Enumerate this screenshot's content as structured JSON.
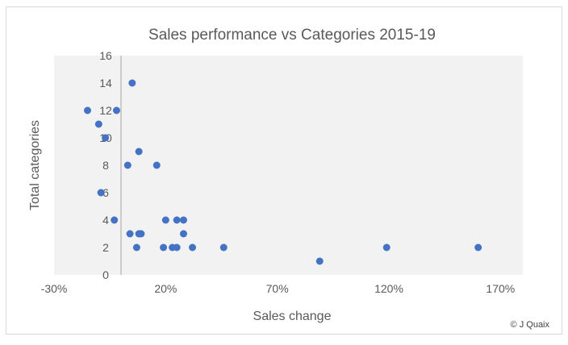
{
  "chart_data": {
    "type": "scatter",
    "title": "Sales performance vs Categories 2015-19",
    "xlabel": "Sales change",
    "ylabel": "Total categories",
    "xlim": [
      -0.3,
      1.8
    ],
    "ylim": [
      0,
      16
    ],
    "x_ticks": [
      -0.3,
      0.2,
      0.7,
      1.2,
      1.7
    ],
    "x_tick_labels": [
      "-30%",
      "20%",
      "70%",
      "120%",
      "170%"
    ],
    "y_ticks": [
      0,
      2,
      4,
      6,
      8,
      10,
      12,
      14,
      16
    ],
    "y_tick_labels": [
      "0",
      "2",
      "4",
      "6",
      "8",
      "10",
      "12",
      "14",
      "16"
    ],
    "grid": false,
    "colors": {
      "marker": "#4472c4",
      "plot_background": "#f2f2f2",
      "zero_line": "#a6a6a6"
    },
    "points": [
      {
        "x": -0.15,
        "y": 12
      },
      {
        "x": -0.02,
        "y": 12
      },
      {
        "x": -0.1,
        "y": 11
      },
      {
        "x": -0.07,
        "y": 10
      },
      {
        "x": 0.05,
        "y": 14
      },
      {
        "x": 0.08,
        "y": 9
      },
      {
        "x": 0.03,
        "y": 8
      },
      {
        "x": 0.16,
        "y": 8
      },
      {
        "x": -0.09,
        "y": 6
      },
      {
        "x": -0.03,
        "y": 4
      },
      {
        "x": 0.2,
        "y": 4
      },
      {
        "x": 0.25,
        "y": 4
      },
      {
        "x": 0.28,
        "y": 4
      },
      {
        "x": 0.04,
        "y": 3
      },
      {
        "x": 0.08,
        "y": 3
      },
      {
        "x": 0.09,
        "y": 3
      },
      {
        "x": 0.28,
        "y": 3
      },
      {
        "x": 0.07,
        "y": 2
      },
      {
        "x": 0.19,
        "y": 2
      },
      {
        "x": 0.23,
        "y": 2
      },
      {
        "x": 0.25,
        "y": 2
      },
      {
        "x": 0.32,
        "y": 2
      },
      {
        "x": 0.46,
        "y": 2
      },
      {
        "x": 1.19,
        "y": 2
      },
      {
        "x": 1.6,
        "y": 2
      },
      {
        "x": 0.89,
        "y": 1
      }
    ]
  },
  "credit": "© J Quaix"
}
